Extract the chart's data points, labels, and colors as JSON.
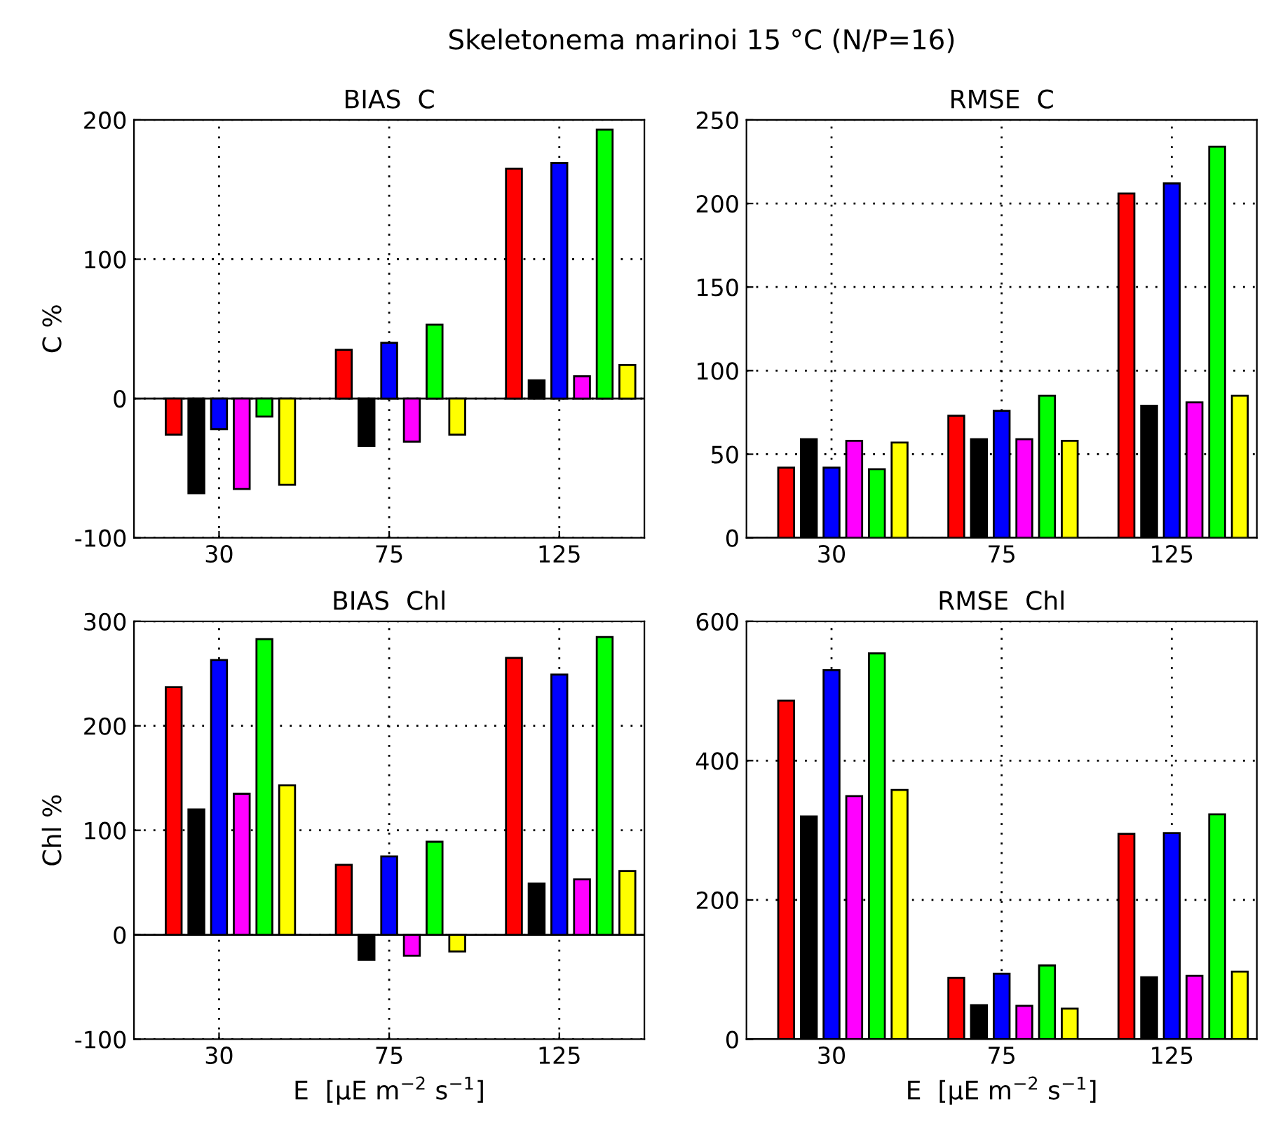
{
  "chart_data": [
    {
      "type": "bar",
      "title": "BIAS  C",
      "ylabel": "C %",
      "annotations": [
        "Skeletonema marinoi 15 °C (N/P=16)"
      ],
      "categories": [
        "30",
        "75",
        "125"
      ],
      "ylim": [
        -100,
        200
      ],
      "yticks": [
        -100,
        0,
        100,
        200
      ],
      "grid": true,
      "series": [
        {
          "color": "#ff0000",
          "values": [
            -26,
            35,
            165
          ]
        },
        {
          "color": "#000000",
          "values": [
            -68,
            -34,
            13
          ]
        },
        {
          "color": "#0000ff",
          "values": [
            -22,
            40,
            169
          ]
        },
        {
          "color": "#ff00ff",
          "values": [
            -65,
            -31,
            16
          ]
        },
        {
          "color": "#00ff00",
          "values": [
            -13,
            53,
            193
          ]
        },
        {
          "color": "#ffff00",
          "values": [
            -62,
            -26,
            24
          ]
        }
      ]
    },
    {
      "type": "bar",
      "title": "RMSE  C",
      "categories": [
        "30",
        "75",
        "125"
      ],
      "ylim": [
        0,
        250
      ],
      "yticks": [
        0,
        50,
        100,
        150,
        200,
        250
      ],
      "grid": true,
      "series": [
        {
          "color": "#ff0000",
          "values": [
            42,
            73,
            206
          ]
        },
        {
          "color": "#000000",
          "values": [
            59,
            59,
            79
          ]
        },
        {
          "color": "#0000ff",
          "values": [
            42,
            76,
            212
          ]
        },
        {
          "color": "#ff00ff",
          "values": [
            58,
            59,
            81
          ]
        },
        {
          "color": "#00ff00",
          "values": [
            41,
            85,
            234
          ]
        },
        {
          "color": "#ffff00",
          "values": [
            57,
            58,
            85
          ]
        }
      ]
    },
    {
      "type": "bar",
      "title": "BIAS  Chl",
      "ylabel": "Chl %",
      "xlabel": "E  [μE m$^{−2}$ s$^{−1}$]",
      "categories": [
        "30",
        "75",
        "125"
      ],
      "ylim": [
        -100,
        300
      ],
      "yticks": [
        -100,
        0,
        100,
        200,
        300
      ],
      "grid": true,
      "series": [
        {
          "color": "#ff0000",
          "values": [
            237,
            67,
            265
          ]
        },
        {
          "color": "#000000",
          "values": [
            120,
            -24,
            49
          ]
        },
        {
          "color": "#0000ff",
          "values": [
            263,
            75,
            249
          ]
        },
        {
          "color": "#ff00ff",
          "values": [
            135,
            -20,
            53
          ]
        },
        {
          "color": "#00ff00",
          "values": [
            283,
            89,
            285
          ]
        },
        {
          "color": "#ffff00",
          "values": [
            143,
            -16,
            61
          ]
        }
      ]
    },
    {
      "type": "bar",
      "title": "RMSE  Chl",
      "xlabel": "E  [μE m$^{−2}$ s$^{−1}$]",
      "categories": [
        "30",
        "75",
        "125"
      ],
      "ylim": [
        0,
        600
      ],
      "yticks": [
        0,
        200,
        400,
        600
      ],
      "grid": true,
      "series": [
        {
          "color": "#ff0000",
          "values": [
            486,
            88,
            295
          ]
        },
        {
          "color": "#000000",
          "values": [
            320,
            49,
            89
          ]
        },
        {
          "color": "#0000ff",
          "values": [
            530,
            94,
            296
          ]
        },
        {
          "color": "#ff00ff",
          "values": [
            349,
            48,
            91
          ]
        },
        {
          "color": "#00ff00",
          "values": [
            554,
            106,
            323
          ]
        },
        {
          "color": "#ffff00",
          "values": [
            358,
            44,
            97
          ]
        }
      ]
    }
  ]
}
